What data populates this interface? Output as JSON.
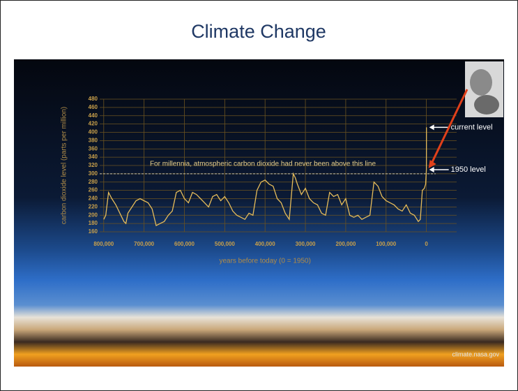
{
  "slide_title": "Climate Change",
  "credit": "climate.nasa.gov",
  "chart_data": {
    "type": "line",
    "xlabel": "years before today (0 = 1950)",
    "ylabel": "carbon dioxide level (parts per million)",
    "annotations": {
      "threshold_text": "For millennia, atmospheric carbon dioxide had never been above this line",
      "current": "current level",
      "level_1950": "1950 level"
    },
    "threshold": 300,
    "color": "#e6bc5a",
    "xlim": [
      810000,
      -75000
    ],
    "ylim": [
      160,
      480
    ],
    "xticks": [
      {
        "value": 800000,
        "label": "800,000"
      },
      {
        "value": 700000,
        "label": "700,000"
      },
      {
        "value": 600000,
        "label": "600,000"
      },
      {
        "value": 500000,
        "label": "500,000"
      },
      {
        "value": 400000,
        "label": "400,000"
      },
      {
        "value": 300000,
        "label": "300,000"
      },
      {
        "value": 200000,
        "label": "200,000"
      },
      {
        "value": 100000,
        "label": "100,000"
      },
      0
    ],
    "yticks": [
      160,
      180,
      200,
      220,
      240,
      260,
      280,
      300,
      320,
      340,
      360,
      380,
      400,
      420,
      440,
      460,
      480
    ],
    "grid": true,
    "x": [
      800000,
      795000,
      788000,
      780000,
      770000,
      760000,
      750000,
      745000,
      740000,
      730000,
      720000,
      710000,
      700000,
      690000,
      680000,
      670000,
      660000,
      650000,
      640000,
      630000,
      620000,
      610000,
      600000,
      590000,
      580000,
      570000,
      560000,
      550000,
      540000,
      530000,
      520000,
      510000,
      500000,
      490000,
      480000,
      470000,
      460000,
      450000,
      440000,
      430000,
      420000,
      410000,
      400000,
      390000,
      380000,
      370000,
      360000,
      350000,
      340000,
      330000,
      325000,
      320000,
      310000,
      300000,
      290000,
      280000,
      270000,
      260000,
      250000,
      240000,
      230000,
      220000,
      210000,
      200000,
      190000,
      180000,
      170000,
      160000,
      150000,
      140000,
      130000,
      125000,
      120000,
      110000,
      100000,
      90000,
      80000,
      70000,
      60000,
      50000,
      40000,
      30000,
      20000,
      15000,
      10000,
      5000,
      2000,
      0,
      -70
    ],
    "values": [
      190,
      200,
      255,
      240,
      225,
      205,
      185,
      180,
      205,
      220,
      235,
      240,
      235,
      230,
      215,
      175,
      180,
      185,
      200,
      210,
      255,
      260,
      240,
      230,
      255,
      250,
      240,
      230,
      220,
      245,
      250,
      235,
      245,
      230,
      210,
      200,
      195,
      190,
      205,
      200,
      260,
      280,
      285,
      275,
      270,
      240,
      230,
      205,
      190,
      300,
      290,
      275,
      250,
      265,
      240,
      230,
      225,
      205,
      200,
      255,
      245,
      250,
      225,
      240,
      200,
      195,
      200,
      190,
      195,
      200,
      280,
      275,
      270,
      245,
      235,
      230,
      225,
      215,
      210,
      225,
      205,
      200,
      185,
      190,
      260,
      265,
      275,
      310,
      412
    ]
  }
}
